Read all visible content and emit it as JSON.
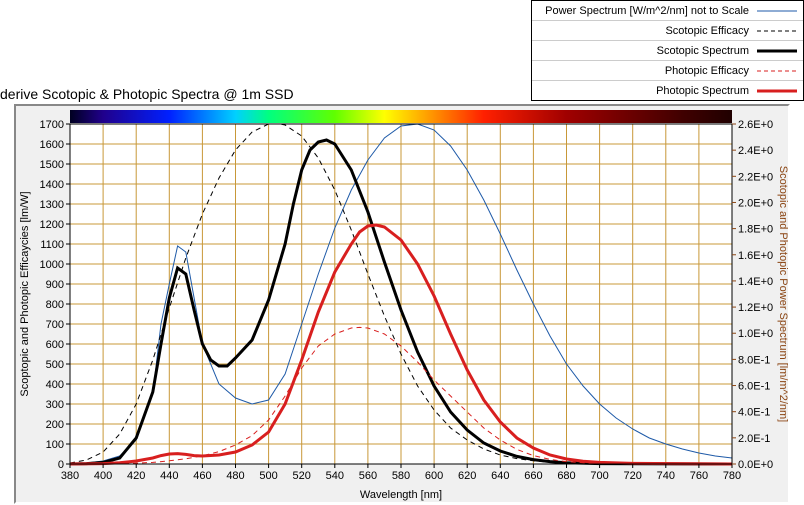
{
  "legend": {
    "items": [
      {
        "label": "Power Spectrum [W/m^2/nm] not to Scale",
        "color": "#1e5aa8",
        "width": 1,
        "dash": ""
      },
      {
        "label": "Scotopic Efficacy",
        "color": "#000000",
        "width": 1,
        "dash": "4,3"
      },
      {
        "label": "Scotopic Spectrum",
        "color": "#000000",
        "width": 3,
        "dash": ""
      },
      {
        "label": "Photopic Efficacy",
        "color": "#d81f1f",
        "width": 1,
        "dash": "4,3"
      },
      {
        "label": "Photopic Spectrum",
        "color": "#d81f1f",
        "width": 3,
        "dash": ""
      }
    ]
  },
  "caption": "derive Scotopic & Photopic Spectra @ 1m SSD",
  "chart": {
    "type": "line",
    "bg": "#f0f0f0",
    "grid_color": "#c89838",
    "xaxis": {
      "min": 380,
      "max": 780,
      "step": 20,
      "title": "Wavelength [nm]"
    },
    "yaxis_left": {
      "min": 0,
      "max": 1700,
      "step": 100,
      "title": "Scoptopic and Photopic Efficaycies [lm/W]",
      "title_color": "#000"
    },
    "yaxis_right": {
      "min": 0,
      "max": 2.6,
      "step": 0.2,
      "title": "Scotopic and Photopic Power Spectrum [lm/m^2/nm]",
      "title_color": "#8b4513"
    },
    "spectrum_bar": {
      "stops": [
        [
          380,
          "#000020"
        ],
        [
          400,
          "#20008c"
        ],
        [
          440,
          "#0020ff"
        ],
        [
          480,
          "#00d0ff"
        ],
        [
          500,
          "#00ff80"
        ],
        [
          540,
          "#60ff00"
        ],
        [
          570,
          "#ffff00"
        ],
        [
          600,
          "#ff9000"
        ],
        [
          630,
          "#ff2000"
        ],
        [
          680,
          "#a00000"
        ],
        [
          750,
          "#400000"
        ],
        [
          780,
          "#200000"
        ]
      ]
    },
    "series": [
      {
        "name": "power",
        "color": "#1e5aa8",
        "width": 1,
        "dash": "",
        "axis": "left",
        "data": [
          [
            380,
            0
          ],
          [
            390,
            5
          ],
          [
            400,
            15
          ],
          [
            410,
            40
          ],
          [
            420,
            120
          ],
          [
            430,
            350
          ],
          [
            435,
            700
          ],
          [
            440,
            900
          ],
          [
            445,
            1090
          ],
          [
            450,
            1060
          ],
          [
            455,
            830
          ],
          [
            460,
            600
          ],
          [
            470,
            400
          ],
          [
            480,
            330
          ],
          [
            490,
            300
          ],
          [
            500,
            320
          ],
          [
            510,
            450
          ],
          [
            520,
            700
          ],
          [
            530,
            950
          ],
          [
            540,
            1180
          ],
          [
            550,
            1370
          ],
          [
            560,
            1520
          ],
          [
            570,
            1630
          ],
          [
            580,
            1690
          ],
          [
            590,
            1700
          ],
          [
            600,
            1670
          ],
          [
            610,
            1590
          ],
          [
            620,
            1470
          ],
          [
            630,
            1320
          ],
          [
            640,
            1150
          ],
          [
            650,
            970
          ],
          [
            660,
            800
          ],
          [
            670,
            640
          ],
          [
            680,
            500
          ],
          [
            690,
            390
          ],
          [
            700,
            300
          ],
          [
            710,
            230
          ],
          [
            720,
            175
          ],
          [
            730,
            130
          ],
          [
            740,
            100
          ],
          [
            750,
            75
          ],
          [
            760,
            55
          ],
          [
            770,
            40
          ],
          [
            780,
            30
          ]
        ]
      },
      {
        "name": "scotopic_eff",
        "color": "#000000",
        "width": 1,
        "dash": "5,4",
        "axis": "left",
        "data": [
          [
            380,
            5
          ],
          [
            390,
            20
          ],
          [
            400,
            60
          ],
          [
            410,
            150
          ],
          [
            420,
            300
          ],
          [
            430,
            520
          ],
          [
            440,
            780
          ],
          [
            450,
            1030
          ],
          [
            460,
            1250
          ],
          [
            470,
            1430
          ],
          [
            480,
            1570
          ],
          [
            490,
            1660
          ],
          [
            500,
            1700
          ],
          [
            507,
            1700
          ],
          [
            510,
            1695
          ],
          [
            520,
            1640
          ],
          [
            530,
            1530
          ],
          [
            540,
            1370
          ],
          [
            550,
            1170
          ],
          [
            560,
            950
          ],
          [
            570,
            740
          ],
          [
            580,
            550
          ],
          [
            590,
            390
          ],
          [
            600,
            270
          ],
          [
            610,
            180
          ],
          [
            620,
            120
          ],
          [
            630,
            75
          ],
          [
            640,
            45
          ],
          [
            650,
            27
          ],
          [
            660,
            16
          ],
          [
            670,
            9
          ],
          [
            680,
            5
          ],
          [
            700,
            1
          ],
          [
            780,
            0
          ]
        ]
      },
      {
        "name": "scotopic_spec",
        "color": "#000000",
        "width": 3,
        "dash": "",
        "axis": "left",
        "data": [
          [
            380,
            0
          ],
          [
            390,
            2
          ],
          [
            400,
            8
          ],
          [
            410,
            30
          ],
          [
            420,
            130
          ],
          [
            430,
            360
          ],
          [
            435,
            600
          ],
          [
            440,
            830
          ],
          [
            445,
            980
          ],
          [
            450,
            950
          ],
          [
            455,
            770
          ],
          [
            460,
            600
          ],
          [
            465,
            520
          ],
          [
            470,
            490
          ],
          [
            475,
            490
          ],
          [
            480,
            530
          ],
          [
            490,
            620
          ],
          [
            500,
            820
          ],
          [
            510,
            1100
          ],
          [
            515,
            1300
          ],
          [
            520,
            1470
          ],
          [
            525,
            1570
          ],
          [
            530,
            1610
          ],
          [
            535,
            1620
          ],
          [
            540,
            1600
          ],
          [
            550,
            1470
          ],
          [
            560,
            1260
          ],
          [
            570,
            1010
          ],
          [
            580,
            770
          ],
          [
            590,
            560
          ],
          [
            600,
            390
          ],
          [
            610,
            260
          ],
          [
            620,
            170
          ],
          [
            630,
            105
          ],
          [
            640,
            65
          ],
          [
            650,
            38
          ],
          [
            660,
            22
          ],
          [
            670,
            12
          ],
          [
            680,
            6
          ],
          [
            700,
            2
          ],
          [
            780,
            0
          ]
        ]
      },
      {
        "name": "photopic_eff",
        "color": "#d81f1f",
        "width": 1,
        "dash": "5,4",
        "axis": "left",
        "data": [
          [
            380,
            0
          ],
          [
            400,
            1
          ],
          [
            420,
            4
          ],
          [
            430,
            8
          ],
          [
            440,
            16
          ],
          [
            450,
            26
          ],
          [
            460,
            41
          ],
          [
            470,
            62
          ],
          [
            480,
            95
          ],
          [
            490,
            142
          ],
          [
            500,
            220
          ],
          [
            510,
            340
          ],
          [
            520,
            480
          ],
          [
            530,
            590
          ],
          [
            540,
            650
          ],
          [
            550,
            680
          ],
          [
            555,
            683
          ],
          [
            560,
            680
          ],
          [
            570,
            650
          ],
          [
            580,
            590
          ],
          [
            590,
            510
          ],
          [
            600,
            420
          ],
          [
            610,
            340
          ],
          [
            620,
            260
          ],
          [
            630,
            180
          ],
          [
            640,
            120
          ],
          [
            650,
            73
          ],
          [
            660,
            42
          ],
          [
            670,
            23
          ],
          [
            680,
            12
          ],
          [
            690,
            6
          ],
          [
            700,
            3
          ],
          [
            720,
            1
          ],
          [
            780,
            0
          ]
        ]
      },
      {
        "name": "photopic_spec",
        "color": "#d81f1f",
        "width": 3,
        "dash": "",
        "axis": "left",
        "data": [
          [
            380,
            0
          ],
          [
            400,
            2
          ],
          [
            410,
            6
          ],
          [
            420,
            15
          ],
          [
            430,
            30
          ],
          [
            435,
            42
          ],
          [
            440,
            50
          ],
          [
            445,
            52
          ],
          [
            450,
            48
          ],
          [
            455,
            42
          ],
          [
            460,
            40
          ],
          [
            470,
            45
          ],
          [
            480,
            60
          ],
          [
            490,
            95
          ],
          [
            500,
            160
          ],
          [
            510,
            300
          ],
          [
            520,
            520
          ],
          [
            530,
            760
          ],
          [
            540,
            960
          ],
          [
            550,
            1100
          ],
          [
            555,
            1160
          ],
          [
            560,
            1190
          ],
          [
            565,
            1195
          ],
          [
            570,
            1185
          ],
          [
            580,
            1120
          ],
          [
            590,
            1000
          ],
          [
            600,
            840
          ],
          [
            610,
            650
          ],
          [
            620,
            470
          ],
          [
            630,
            320
          ],
          [
            640,
            210
          ],
          [
            650,
            130
          ],
          [
            660,
            80
          ],
          [
            670,
            45
          ],
          [
            680,
            25
          ],
          [
            690,
            14
          ],
          [
            700,
            8
          ],
          [
            720,
            3
          ],
          [
            780,
            0
          ]
        ]
      }
    ]
  }
}
